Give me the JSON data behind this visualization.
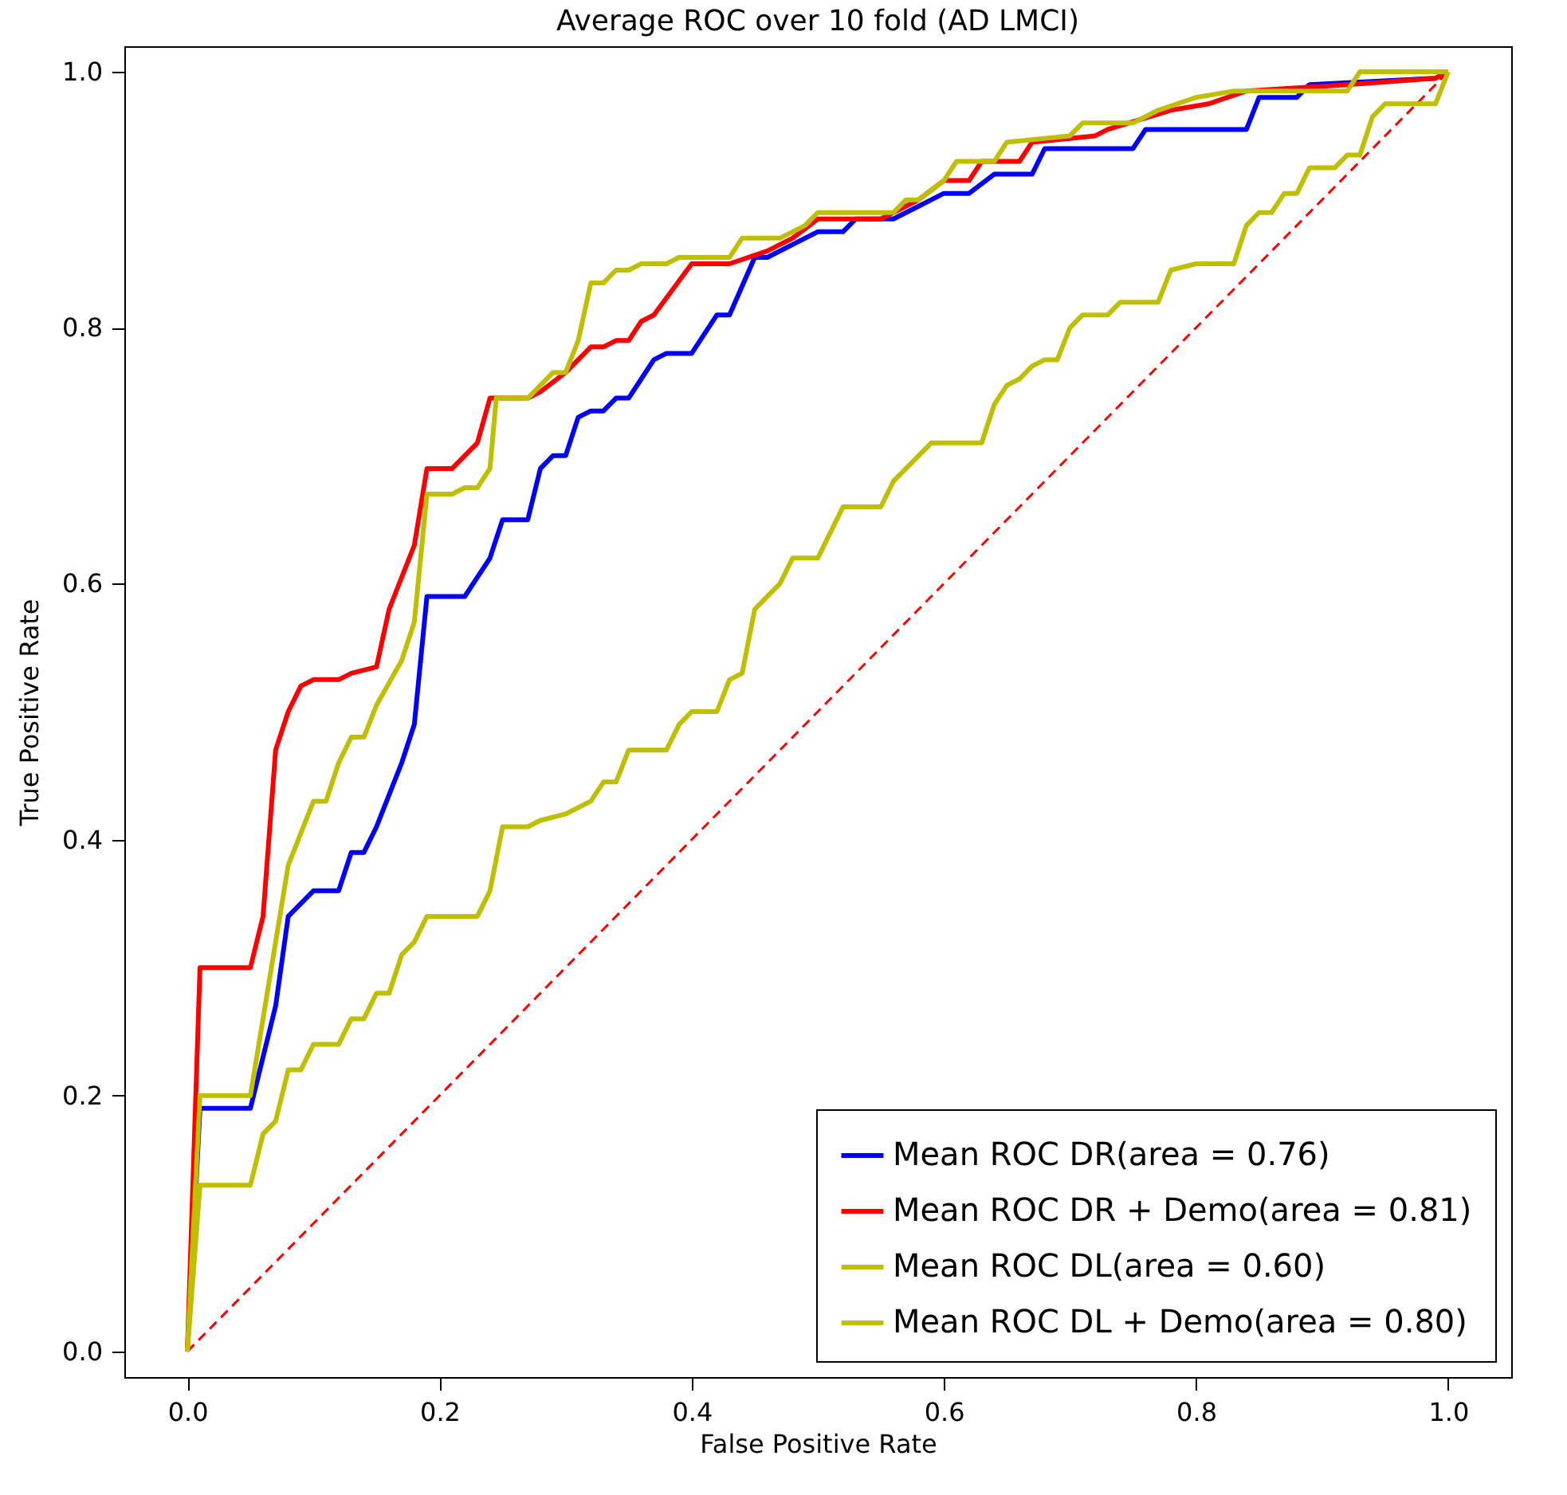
{
  "chart_data": {
    "type": "line",
    "title": "Average ROC over 10 fold (AD LMCI)",
    "xlabel": "False Positive Rate",
    "ylabel": "True Positive Rate",
    "xlim": [
      -0.05,
      1.05
    ],
    "ylim": [
      -0.02,
      1.02
    ],
    "xticks": [
      {
        "value": 0,
        "label": "0.0"
      },
      0.2,
      0.4,
      0.6,
      0.8,
      {
        "value": 1,
        "label": "1.0"
      }
    ],
    "yticks": [
      {
        "value": 0,
        "label": "0.0"
      },
      0.2,
      0.4,
      0.6,
      0.8,
      {
        "value": 1,
        "label": "1.0"
      }
    ],
    "grid": false,
    "legend": "bottom right",
    "line_style": "solid",
    "series": [
      {
        "name": "Mean ROC DR(area = 0.76)",
        "color": "#0000ff",
        "x": [
          0,
          0.01,
          0.05,
          0.07,
          0.08,
          0.1,
          0.12,
          0.13,
          0.14,
          0.15,
          0.17,
          0.18,
          0.19,
          0.22,
          0.24,
          0.25,
          0.27,
          0.28,
          0.29,
          0.3,
          0.31,
          0.32,
          0.33,
          0.34,
          0.35,
          0.36,
          0.37,
          0.38,
          0.4,
          0.42,
          0.43,
          0.45,
          0.46,
          0.48,
          0.5,
          0.52,
          0.53,
          0.56,
          0.58,
          0.6,
          0.62,
          0.64,
          0.67,
          0.68,
          0.75,
          0.76,
          0.84,
          0.85,
          0.88,
          0.89,
          0.99,
          1.0
        ],
        "values": [
          0,
          0.19,
          0.19,
          0.27,
          0.34,
          0.36,
          0.36,
          0.39,
          0.39,
          0.41,
          0.46,
          0.49,
          0.59,
          0.59,
          0.62,
          0.65,
          0.65,
          0.69,
          0.7,
          0.7,
          0.73,
          0.735,
          0.735,
          0.745,
          0.745,
          0.76,
          0.775,
          0.78,
          0.78,
          0.81,
          0.81,
          0.855,
          0.855,
          0.865,
          0.875,
          0.875,
          0.885,
          0.885,
          0.895,
          0.905,
          0.905,
          0.92,
          0.92,
          0.94,
          0.94,
          0.955,
          0.955,
          0.98,
          0.98,
          0.99,
          0.995,
          1.0
        ]
      },
      {
        "name": "Mean ROC DR + Demo(area = 0.81)",
        "color": "#ff0000",
        "x": [
          0,
          0.01,
          0.05,
          0.06,
          0.07,
          0.08,
          0.09,
          0.1,
          0.12,
          0.13,
          0.15,
          0.16,
          0.18,
          0.19,
          0.21,
          0.23,
          0.24,
          0.27,
          0.28,
          0.3,
          0.32,
          0.33,
          0.34,
          0.35,
          0.36,
          0.37,
          0.4,
          0.43,
          0.46,
          0.48,
          0.5,
          0.55,
          0.58,
          0.6,
          0.62,
          0.63,
          0.66,
          0.67,
          0.72,
          0.73,
          0.78,
          0.81,
          0.84,
          0.92,
          0.99,
          1.0
        ],
        "values": [
          0,
          0.3,
          0.3,
          0.34,
          0.47,
          0.5,
          0.52,
          0.525,
          0.525,
          0.53,
          0.535,
          0.58,
          0.63,
          0.69,
          0.69,
          0.71,
          0.745,
          0.745,
          0.75,
          0.765,
          0.785,
          0.785,
          0.79,
          0.79,
          0.805,
          0.81,
          0.85,
          0.85,
          0.86,
          0.87,
          0.885,
          0.885,
          0.9,
          0.915,
          0.915,
          0.93,
          0.93,
          0.945,
          0.95,
          0.955,
          0.97,
          0.975,
          0.985,
          0.99,
          0.995,
          1.0
        ]
      },
      {
        "name": "Mean ROC DL(area = 0.60)",
        "color": "#bfbf00",
        "x": [
          0,
          0.01,
          0.05,
          0.06,
          0.07,
          0.08,
          0.09,
          0.1,
          0.12,
          0.13,
          0.14,
          0.15,
          0.16,
          0.17,
          0.18,
          0.19,
          0.23,
          0.24,
          0.25,
          0.27,
          0.28,
          0.3,
          0.32,
          0.33,
          0.34,
          0.35,
          0.38,
          0.39,
          0.4,
          0.42,
          0.43,
          0.44,
          0.45,
          0.46,
          0.47,
          0.48,
          0.5,
          0.52,
          0.55,
          0.56,
          0.58,
          0.59,
          0.63,
          0.64,
          0.65,
          0.66,
          0.67,
          0.68,
          0.69,
          0.7,
          0.71,
          0.73,
          0.74,
          0.77,
          0.78,
          0.8,
          0.83,
          0.84,
          0.85,
          0.86,
          0.87,
          0.88,
          0.89,
          0.91,
          0.92,
          0.93,
          0.94,
          0.95,
          0.99,
          1.0
        ],
        "values": [
          0,
          0.13,
          0.13,
          0.17,
          0.18,
          0.22,
          0.22,
          0.24,
          0.24,
          0.26,
          0.26,
          0.28,
          0.28,
          0.31,
          0.32,
          0.34,
          0.34,
          0.36,
          0.41,
          0.41,
          0.415,
          0.42,
          0.43,
          0.445,
          0.445,
          0.47,
          0.47,
          0.49,
          0.5,
          0.5,
          0.525,
          0.53,
          0.58,
          0.59,
          0.6,
          0.62,
          0.62,
          0.66,
          0.66,
          0.68,
          0.7,
          0.71,
          0.71,
          0.74,
          0.755,
          0.76,
          0.77,
          0.775,
          0.775,
          0.8,
          0.81,
          0.81,
          0.82,
          0.82,
          0.845,
          0.85,
          0.85,
          0.88,
          0.89,
          0.89,
          0.905,
          0.905,
          0.925,
          0.925,
          0.935,
          0.935,
          0.965,
          0.975,
          0.975,
          1.0
        ]
      },
      {
        "name": "Mean ROC DL + Demo(area = 0.80)",
        "color": "#bfbf00",
        "x": [
          0,
          0.01,
          0.05,
          0.06,
          0.07,
          0.08,
          0.1,
          0.11,
          0.12,
          0.13,
          0.14,
          0.15,
          0.17,
          0.18,
          0.19,
          0.21,
          0.22,
          0.23,
          0.24,
          0.245,
          0.27,
          0.28,
          0.29,
          0.3,
          0.31,
          0.32,
          0.33,
          0.34,
          0.35,
          0.36,
          0.38,
          0.39,
          0.43,
          0.44,
          0.47,
          0.49,
          0.5,
          0.56,
          0.57,
          0.58,
          0.6,
          0.61,
          0.64,
          0.65,
          0.7,
          0.71,
          0.75,
          0.77,
          0.8,
          0.83,
          0.92,
          0.93,
          1.0
        ],
        "values": [
          0,
          0.2,
          0.2,
          0.26,
          0.32,
          0.38,
          0.43,
          0.43,
          0.46,
          0.48,
          0.48,
          0.505,
          0.54,
          0.57,
          0.67,
          0.67,
          0.675,
          0.675,
          0.69,
          0.745,
          0.745,
          0.755,
          0.765,
          0.765,
          0.79,
          0.835,
          0.835,
          0.845,
          0.845,
          0.85,
          0.85,
          0.855,
          0.855,
          0.87,
          0.87,
          0.88,
          0.89,
          0.89,
          0.9,
          0.9,
          0.915,
          0.93,
          0.93,
          0.945,
          0.95,
          0.96,
          0.96,
          0.97,
          0.98,
          0.985,
          0.985,
          1.0,
          1.0
        ]
      },
      {
        "color": "#ff0000",
        "line_style": "dashed",
        "x": [
          0,
          1
        ],
        "values": [
          0,
          1
        ]
      }
    ]
  }
}
